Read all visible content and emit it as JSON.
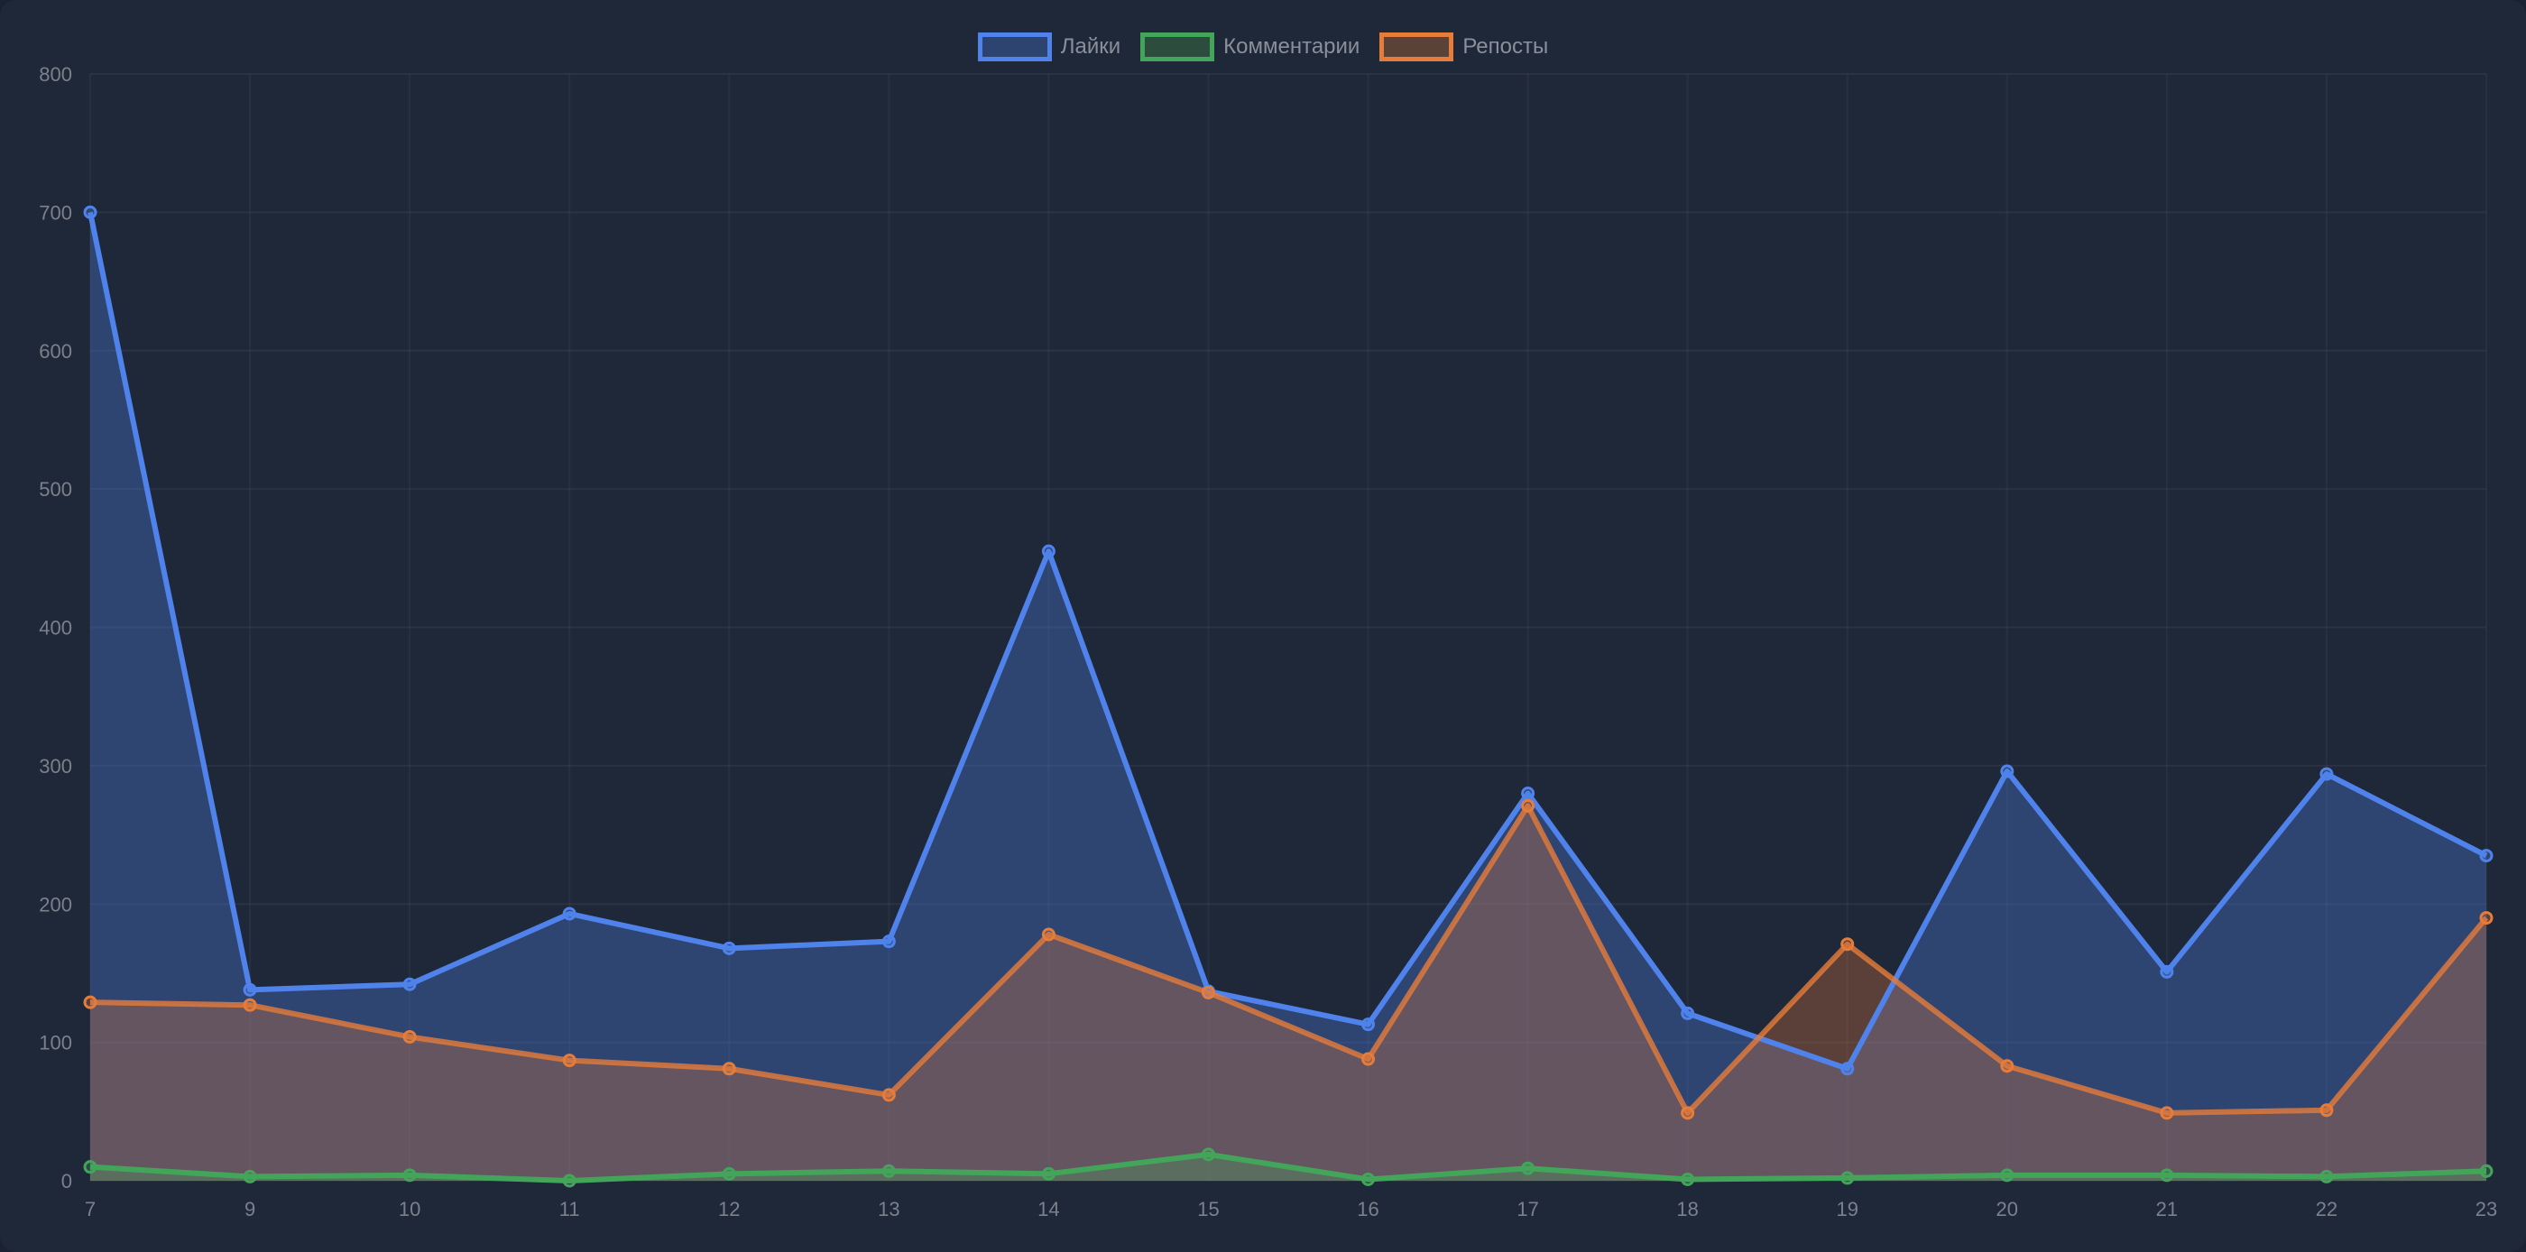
{
  "chart_data": {
    "type": "area",
    "title": "",
    "xlabel": "",
    "ylabel": "",
    "categories": [
      "7",
      "9",
      "10",
      "11",
      "12",
      "13",
      "14",
      "15",
      "16",
      "17",
      "18",
      "19",
      "20",
      "21",
      "22",
      "23"
    ],
    "ylim": [
      0,
      800
    ],
    "yticks": [
      "0",
      "100",
      "200",
      "300",
      "400",
      "500",
      "600",
      "700",
      "800"
    ],
    "grid": true,
    "legend_position": "top-center",
    "series": [
      {
        "name": "Лайки",
        "color": "#4f82eb",
        "fill": "rgba(79,130,235,0.32)",
        "values": [
          700,
          138,
          142,
          193,
          168,
          173,
          455,
          137,
          113,
          280,
          121,
          81,
          296,
          151,
          294,
          235
        ]
      },
      {
        "name": "Комментарии",
        "color": "#43a55a",
        "fill": "rgba(67,165,90,0.3)",
        "values": [
          10,
          3,
          4,
          0,
          5,
          7,
          5,
          19,
          1,
          9,
          1,
          2,
          4,
          4,
          3,
          7
        ]
      },
      {
        "name": "Репосты",
        "color": "#e67c3a",
        "fill": "rgba(230,124,58,0.3)",
        "values": [
          129,
          127,
          104,
          87,
          81,
          62,
          178,
          136,
          88,
          271,
          49,
          171,
          83,
          49,
          51,
          190
        ]
      }
    ]
  }
}
